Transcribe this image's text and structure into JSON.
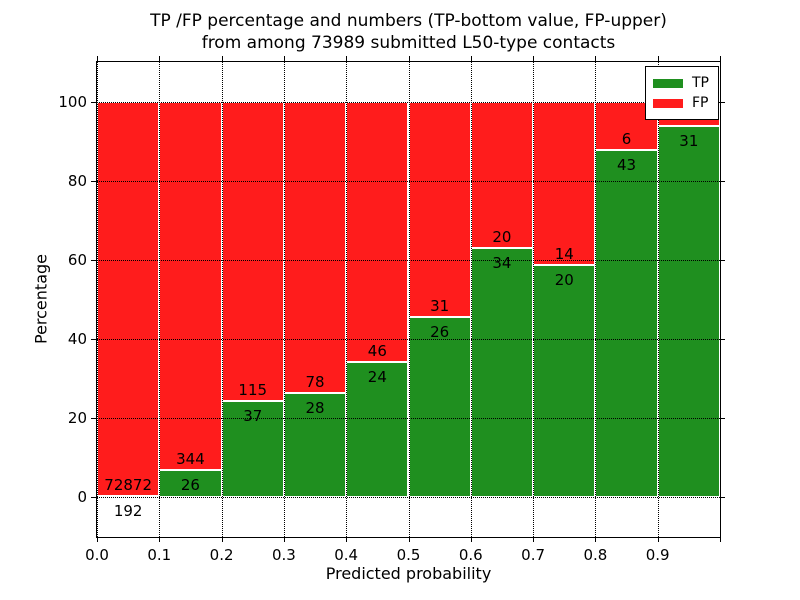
{
  "title": {
    "line1": "TP /FP percentage and numbers (TP-bottom value, FP-upper)",
    "line2": "from among 73989 submitted L50-type contacts"
  },
  "chart_data": {
    "type": "bar",
    "stacked": true,
    "normalized_to_percent": true,
    "title": "TP /FP percentage and numbers (TP-bottom value, FP-upper) from among 73989 submitted L50-type contacts",
    "xlabel": "Predicted probability",
    "ylabel": "Percentage",
    "total_contacts_shown_in_title": 73989,
    "xlim": [
      0.0,
      1.0
    ],
    "ylim": [
      -10,
      110
    ],
    "grid": true,
    "bin_edges": [
      0.0,
      0.1,
      0.2,
      0.3,
      0.4,
      0.5,
      0.6,
      0.7,
      0.8,
      0.9,
      1.0
    ],
    "x_tick_values": [
      0.0,
      0.1,
      0.2,
      0.3,
      0.4,
      0.5,
      0.6,
      0.7,
      0.8,
      0.9
    ],
    "x_tick_labels": [
      "0.0",
      "0.1",
      "0.2",
      "0.3",
      "0.4",
      "0.5",
      "0.6",
      "0.7",
      "0.8",
      "0.9"
    ],
    "y_tick_values": [
      0,
      20,
      40,
      60,
      80,
      100
    ],
    "y_tick_labels": [
      "0",
      "20",
      "40",
      "60",
      "80",
      "100"
    ],
    "series": [
      {
        "name": "TP",
        "color": "#1f8f1f",
        "counts": [
          192,
          26,
          37,
          28,
          24,
          26,
          34,
          20,
          43,
          31
        ]
      },
      {
        "name": "FP",
        "color": "#ff1c1c",
        "counts": [
          72872,
          344,
          115,
          78,
          46,
          31,
          20,
          14,
          6,
          2
        ]
      }
    ],
    "legend": {
      "position": "upper right",
      "entries": [
        "TP",
        "FP"
      ]
    },
    "colors": {
      "tp_green": "#1f8f1f",
      "fp_red": "#ff1c1c",
      "grid": "#000000",
      "background": "#ffffff"
    }
  }
}
